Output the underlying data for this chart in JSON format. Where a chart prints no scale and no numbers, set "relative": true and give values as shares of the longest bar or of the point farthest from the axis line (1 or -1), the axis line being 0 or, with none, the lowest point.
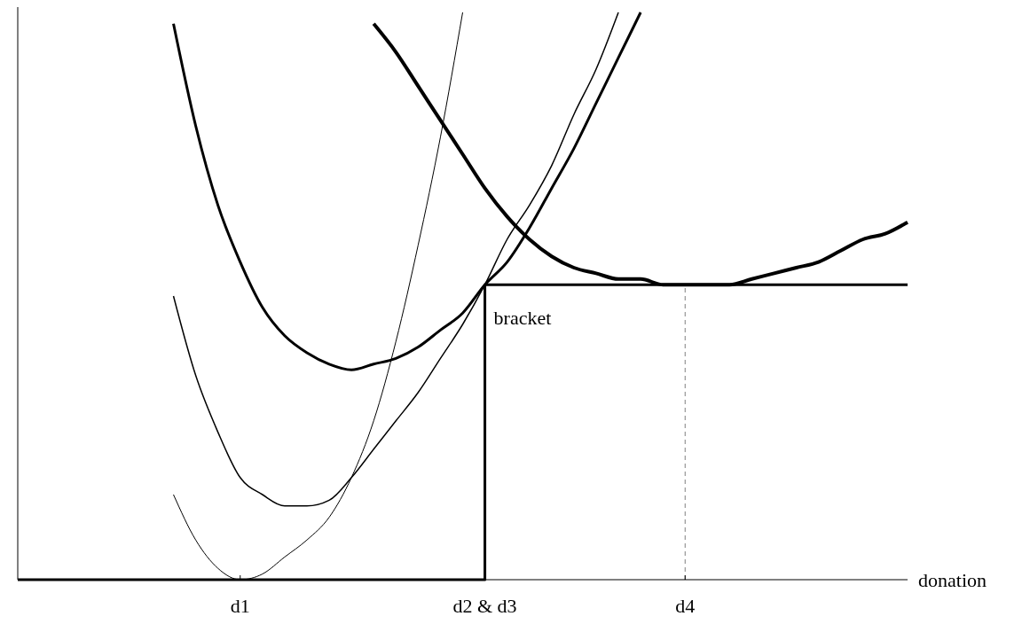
{
  "chart_data": {
    "type": "line",
    "relative": true,
    "xlabel": "donation",
    "categories": [
      null,
      null,
      null,
      null,
      null,
      null,
      null,
      null,
      null,
      null,
      "d1",
      null,
      null,
      null,
      null,
      null,
      null,
      null,
      null,
      null,
      null,
      "d2 & d3",
      null,
      null,
      null,
      null,
      null,
      null,
      null,
      null,
      "d4",
      null,
      null,
      null,
      null,
      null,
      null,
      null,
      null,
      null,
      null
    ],
    "series": [
      {
        "color": "#000000",
        "values": [
          null,
          null,
          null,
          null,
          null,
          null,
          null,
          0.15,
          0.07,
          0.02,
          0,
          0.01,
          0.04,
          0.07,
          0.11,
          0.18,
          0.28,
          0.42,
          0.59,
          0.78,
          1,
          null,
          null,
          null,
          null,
          null,
          null,
          null,
          null,
          null,
          null,
          null,
          null,
          null,
          null,
          null,
          null,
          null,
          null,
          null,
          null
        ]
      },
      {
        "color": "#000000",
        "values": [
          null,
          null,
          null,
          null,
          null,
          null,
          null,
          0.5,
          0.36,
          0.26,
          0.18,
          0.15,
          0.13,
          0.13,
          0.14,
          0.18,
          0.23,
          0.28,
          0.33,
          0.39,
          0.45,
          0.52,
          0.6,
          0.66,
          0.73,
          0.82,
          0.9,
          1,
          null,
          null,
          null,
          null,
          null,
          null,
          null,
          null,
          null,
          null,
          null,
          null,
          null
        ]
      },
      {
        "color": "#000000",
        "values": [
          null,
          null,
          null,
          null,
          null,
          null,
          null,
          0.98,
          0.8,
          0.66,
          0.56,
          0.48,
          0.43,
          0.4,
          0.38,
          0.37,
          0.38,
          0.39,
          0.41,
          0.44,
          0.47,
          0.52,
          0.56,
          0.62,
          0.69,
          0.76,
          0.84,
          0.92,
          1,
          null,
          null,
          null,
          null,
          null,
          null,
          null,
          null,
          null,
          null,
          null,
          null
        ]
      },
      {
        "color": "#000000",
        "values": [
          null,
          null,
          null,
          null,
          null,
          null,
          null,
          null,
          null,
          null,
          null,
          null,
          null,
          null,
          null,
          null,
          0.98,
          0.93,
          0.87,
          0.81,
          0.75,
          0.69,
          0.64,
          0.6,
          0.57,
          0.55,
          0.54,
          0.53,
          0.53,
          0.52,
          0.52,
          0.52,
          0.52,
          0.53,
          0.54,
          0.55,
          0.56,
          0.58,
          0.6,
          0.61,
          0.63
        ]
      },
      {
        "type": "step",
        "color": "#000000",
        "values": [
          0,
          0,
          0,
          0,
          0,
          0,
          0,
          0,
          0,
          0,
          0,
          0,
          0,
          0,
          0,
          0,
          0,
          0,
          0,
          0,
          0,
          0.52,
          0.52,
          0.52,
          0.52,
          0.52,
          0.52,
          0.52,
          0.52,
          0.52,
          0.52,
          0.52,
          0.52,
          0.52,
          0.52,
          0.52,
          0.52,
          0.52,
          0.52,
          0.52,
          0.52
        ]
      }
    ],
    "ref_lines": [
      {
        "axis": "x",
        "value": "d4",
        "line_style": "dashed",
        "color": "#808080"
      }
    ],
    "annotations": [
      "bracket"
    ]
  }
}
